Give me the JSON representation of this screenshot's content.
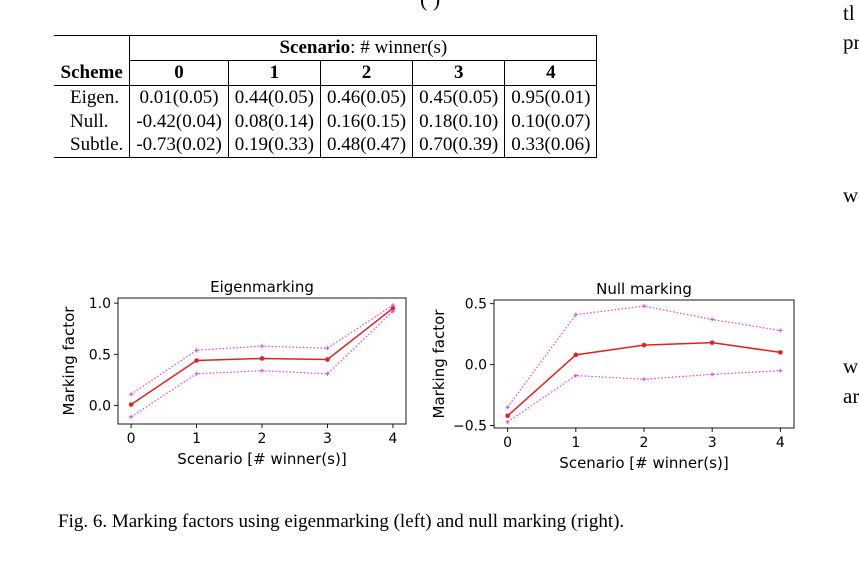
{
  "fragments": {
    "top_cut": "(                                        )",
    "margin_lines": [
      "tl",
      "pr",
      "w",
      "w",
      "ar"
    ]
  },
  "table": {
    "corner_label": "Scheme",
    "scenario_header_bold": "Scenario",
    "scenario_header_rest": ": # winner(s)",
    "columns": [
      "0",
      "1",
      "2",
      "3",
      "4"
    ],
    "rows": [
      {
        "scheme": "Eigen.",
        "values": [
          "0.01(0.05)",
          "0.44(0.05)",
          "0.46(0.05)",
          "0.45(0.05)",
          "0.95(0.01)"
        ]
      },
      {
        "scheme": "Null.",
        "values": [
          "-0.42(0.04)",
          "0.08(0.14)",
          "0.16(0.15)",
          "0.18(0.10)",
          "0.10(0.07)"
        ]
      },
      {
        "scheme": "Subtle.",
        "values": [
          "-0.73(0.02)",
          "0.19(0.33)",
          "0.48(0.47)",
          "0.70(0.39)",
          "0.33(0.06)"
        ]
      }
    ]
  },
  "chart_data": [
    {
      "type": "line",
      "title": "Eigenmarking",
      "xlabel": "Scenario [# winner(s)]",
      "ylabel": "Marking factor",
      "x": [
        0,
        1,
        2,
        3,
        4
      ],
      "xticks": [
        "0",
        "1",
        "2",
        "3",
        "4"
      ],
      "yticks": [
        0.0,
        0.5,
        1.0
      ],
      "ytick_labels": [
        "0.0",
        "0.5",
        "1.0"
      ],
      "ylim": [
        -0.18,
        1.05
      ],
      "series": [
        {
          "role": "mean",
          "values": [
            0.01,
            0.44,
            0.46,
            0.45,
            0.95
          ],
          "color": "#e0221f",
          "style": "solid"
        },
        {
          "role": "upper",
          "values": [
            0.11,
            0.54,
            0.58,
            0.56,
            0.98
          ],
          "color": "#e040e0",
          "style": "dotted"
        },
        {
          "role": "lower",
          "values": [
            -0.11,
            0.31,
            0.34,
            0.31,
            0.92
          ],
          "color": "#e040e0",
          "style": "dotted"
        }
      ]
    },
    {
      "type": "line",
      "title": "Null marking",
      "xlabel": "Scenario [# winner(s)]",
      "ylabel": "Marking factor",
      "x": [
        0,
        1,
        2,
        3,
        4
      ],
      "xticks": [
        "0",
        "1",
        "2",
        "3",
        "4"
      ],
      "yticks": [
        -0.5,
        0.0,
        0.5
      ],
      "ytick_labels": [
        "−0.5",
        "0.0",
        "0.5"
      ],
      "ylim": [
        -0.52,
        0.53
      ],
      "series": [
        {
          "role": "mean",
          "values": [
            -0.42,
            0.08,
            0.16,
            0.18,
            0.1
          ],
          "color": "#e0221f",
          "style": "solid"
        },
        {
          "role": "upper",
          "values": [
            -0.35,
            0.41,
            0.48,
            0.37,
            0.28
          ],
          "color": "#e040e0",
          "style": "dotted"
        },
        {
          "role": "lower",
          "values": [
            -0.47,
            -0.09,
            -0.12,
            -0.08,
            -0.05
          ],
          "color": "#e040e0",
          "style": "dotted"
        }
      ]
    }
  ],
  "caption": "Fig. 6.  Marking factors using eigenmarking (left) and null marking (right)."
}
